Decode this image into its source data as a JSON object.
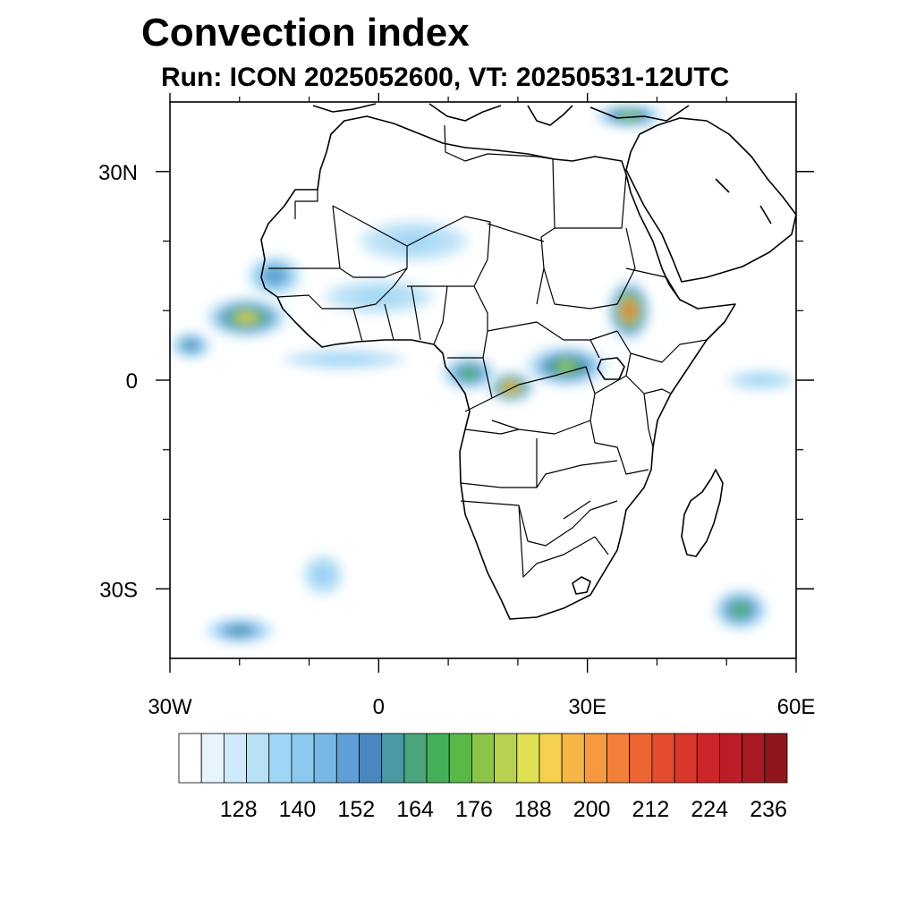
{
  "title": "Convection index",
  "subtitle": "Run: ICON 2025052600,  VT: 20250531-12UTC",
  "map": {
    "lon_range": [
      -30,
      60
    ],
    "lat_range": [
      -40,
      40
    ],
    "x_ticks": [
      {
        "lon": -30,
        "label": "30W"
      },
      {
        "lon": 0,
        "label": "0"
      },
      {
        "lon": 30,
        "label": "30E"
      },
      {
        "lon": 60,
        "label": "60E"
      }
    ],
    "y_ticks": [
      {
        "lat": 30,
        "label": "30N"
      },
      {
        "lat": 0,
        "label": "0"
      },
      {
        "lat": -30,
        "label": "30S"
      }
    ],
    "minor_lon_ticks": [
      -20,
      -10,
      10,
      20,
      40,
      50
    ],
    "minor_lat_ticks": [
      20,
      10,
      -10,
      -20
    ]
  },
  "colorbar": {
    "colors": [
      "#ffffff",
      "#e6f4fc",
      "#cfeafa",
      "#b8e0f7",
      "#a0d6f5",
      "#8cc8ee",
      "#78b8e6",
      "#5f9fd6",
      "#4b87bf",
      "#4a9aa5",
      "#4aa57c",
      "#45b05a",
      "#58b848",
      "#8cc44a",
      "#b6d24e",
      "#dfe054",
      "#f5d04e",
      "#f7b447",
      "#f79a3f",
      "#f2803a",
      "#ec6634",
      "#e44c2e",
      "#da362c",
      "#cd262a",
      "#bc1e28",
      "#a81a22",
      "#8f161c"
    ],
    "labels": [
      "128",
      "140",
      "152",
      "164",
      "176",
      "188",
      "200",
      "212",
      "224",
      "236"
    ],
    "label_indices": [
      2,
      5,
      8,
      11,
      14,
      17,
      20,
      23,
      26,
      29
    ]
  },
  "convection_cells": [
    {
      "lon": 36,
      "lat": 10,
      "rx": 3.2,
      "ry": 4.5,
      "level": 0.85
    },
    {
      "lon": 19,
      "lat": -1,
      "rx": 3.5,
      "ry": 2.3,
      "level": 0.8
    },
    {
      "lon": 27,
      "lat": 2,
      "rx": 6,
      "ry": 3,
      "level": 0.55
    },
    {
      "lon": 13,
      "lat": 1,
      "rx": 4,
      "ry": 2.5,
      "level": 0.45
    },
    {
      "lon": -19,
      "lat": 9,
      "rx": 6,
      "ry": 3,
      "level": 0.6
    },
    {
      "lon": -27,
      "lat": 5,
      "rx": 3,
      "ry": 2,
      "level": 0.4
    },
    {
      "lon": -15,
      "lat": 15,
      "rx": 4,
      "ry": 3,
      "level": 0.35
    },
    {
      "lon": 36,
      "lat": 38,
      "rx": 5,
      "ry": 1.8,
      "level": 0.55
    },
    {
      "lon": 52,
      "lat": -33,
      "rx": 4,
      "ry": 3,
      "level": 0.45
    },
    {
      "lon": -20,
      "lat": -36,
      "rx": 5,
      "ry": 2,
      "level": 0.4
    },
    {
      "lon": -8,
      "lat": -28,
      "rx": 3,
      "ry": 3,
      "level": 0.2
    },
    {
      "lon": 5,
      "lat": 20,
      "rx": 8,
      "ry": 3,
      "level": 0.15
    },
    {
      "lon": -5,
      "lat": 3,
      "rx": 9,
      "ry": 1.5,
      "level": 0.15
    },
    {
      "lon": 55,
      "lat": 0,
      "rx": 5,
      "ry": 1.5,
      "level": 0.15
    },
    {
      "lon": 0,
      "lat": 12,
      "rx": 8,
      "ry": 2.5,
      "level": 0.15
    }
  ]
}
